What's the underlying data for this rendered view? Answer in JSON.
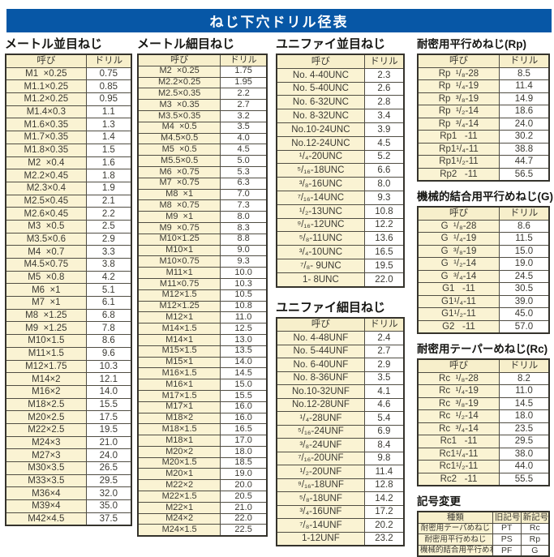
{
  "page_title": "ねじ下穴ドリル径表",
  "colors": {
    "banner_blue": "#0757a6",
    "cell_cream": "#faf3d3",
    "header_cream": "#f7efcb",
    "border_dark": "#35332c",
    "text": "#3b3a33"
  },
  "tables": {
    "metric_coarse": {
      "title": "メートル並目ねじ",
      "headers": [
        "呼び",
        "ドリル"
      ],
      "rows": [
        [
          "M1  ×0.25",
          "0.75"
        ],
        [
          "M1.1×0.25",
          "0.85"
        ],
        [
          "M1.2×0.25",
          "0.95"
        ],
        [
          "M1.4×0.3",
          "1.1"
        ],
        [
          "M1.6×0.35",
          "1.3"
        ],
        [
          "M1.7×0.35",
          "1.4"
        ],
        [
          "M1.8×0.35",
          "1.5"
        ],
        [
          "M2  ×0.4",
          "1.6"
        ],
        [
          "M2.2×0.45",
          "1.8"
        ],
        [
          "M2.3×0.4",
          "1.9"
        ],
        [
          "M2.5×0.45",
          "2.1"
        ],
        [
          "M2.6×0.45",
          "2.2"
        ],
        [
          "M3  ×0.5",
          "2.5"
        ],
        [
          "M3.5×0.6",
          "2.9"
        ],
        [
          "M4  ×0.7",
          "3.3"
        ],
        [
          "M4.5×0.75",
          "3.8"
        ],
        [
          "M5  ×0.8",
          "4.2"
        ],
        [
          "M6  ×1",
          "5.1"
        ],
        [
          "M7  ×1",
          "6.1"
        ],
        [
          "M8  ×1.25",
          "6.8"
        ],
        [
          "M9  ×1.25",
          "7.8"
        ],
        [
          "M10×1.5",
          "8.6"
        ],
        [
          "M11×1.5",
          "9.6"
        ],
        [
          "M12×1.75",
          "10.3"
        ],
        [
          "M14×2",
          "12.1"
        ],
        [
          "M16×2",
          "14.0"
        ],
        [
          "M18×2.5",
          "15.5"
        ],
        [
          "M20×2.5",
          "17.5"
        ],
        [
          "M22×2.5",
          "19.5"
        ],
        [
          "M24×3",
          "21.0"
        ],
        [
          "M27×3",
          "24.0"
        ],
        [
          "M30×3.5",
          "26.5"
        ],
        [
          "M33×3.5",
          "29.5"
        ],
        [
          "M36×4",
          "32.0"
        ],
        [
          "M39×4",
          "35.0"
        ],
        [
          "M42×4.5",
          "37.5"
        ]
      ]
    },
    "metric_fine": {
      "title": "メートル細目ねじ",
      "headers": [
        "呼び",
        "ドリル"
      ],
      "rows": [
        [
          "M2  ×0.25",
          "1.75"
        ],
        [
          "M2.2×0.25",
          "1.95"
        ],
        [
          "M2.5×0.35",
          "2.2"
        ],
        [
          "M3  ×0.35",
          "2.7"
        ],
        [
          "M3.5×0.35",
          "3.2"
        ],
        [
          "M4  ×0.5",
          "3.5"
        ],
        [
          "M4.5×0.5",
          "4.0"
        ],
        [
          "M5  ×0.5",
          "4.5"
        ],
        [
          "M5.5×0.5",
          "5.0"
        ],
        [
          "M6  ×0.75",
          "5.3"
        ],
        [
          "M7  ×0.75",
          "6.3"
        ],
        [
          "M8  ×1",
          "7.0"
        ],
        [
          "M8  ×0.75",
          "7.3"
        ],
        [
          "M9  ×1",
          "8.0"
        ],
        [
          "M9  ×0.75",
          "8.3"
        ],
        [
          "M10×1.25",
          "8.8"
        ],
        [
          "M10×1",
          "9.0"
        ],
        [
          "M10×0.75",
          "9.3"
        ],
        [
          "M11×1",
          "10.0"
        ],
        [
          "M11×0.75",
          "10.3"
        ],
        [
          "M12×1.5",
          "10.5"
        ],
        [
          "M12×1.25",
          "10.8"
        ],
        [
          "M12×1",
          "11.0"
        ],
        [
          "M14×1.5",
          "12.5"
        ],
        [
          "M14×1",
          "13.0"
        ],
        [
          "M15×1.5",
          "13.5"
        ],
        [
          "M15×1",
          "14.0"
        ],
        [
          "M16×1.5",
          "14.5"
        ],
        [
          "M16×1",
          "15.0"
        ],
        [
          "M17×1.5",
          "15.5"
        ],
        [
          "M17×1",
          "16.0"
        ],
        [
          "M18×2",
          "16.0"
        ],
        [
          "M18×1.5",
          "16.5"
        ],
        [
          "M18×1",
          "17.0"
        ],
        [
          "M20×2",
          "18.0"
        ],
        [
          "M20×1.5",
          "18.5"
        ],
        [
          "M20×1",
          "19.0"
        ],
        [
          "M22×2",
          "20.0"
        ],
        [
          "M22×1.5",
          "20.5"
        ],
        [
          "M22×1",
          "21.0"
        ],
        [
          "M24×2",
          "22.0"
        ],
        [
          "M24×1.5",
          "22.5"
        ]
      ]
    },
    "unified_coarse": {
      "title": "ユニファイ並目ねじ",
      "headers": [
        "呼び",
        "ドリル"
      ],
      "rows": [
        [
          "No. 4-40UNC",
          "2.3"
        ],
        [
          "No. 5-40UNC",
          "2.6"
        ],
        [
          "No. 6-32UNC",
          "2.8"
        ],
        [
          "No. 8-32UNC",
          "3.4"
        ],
        [
          "No.10-24UNC",
          "3.9"
        ],
        [
          "No.12-24UNC",
          "4.5"
        ],
        [
          "¹/₄-20UNC",
          "5.2"
        ],
        [
          "⁵/₁₆-18UNC",
          "6.6"
        ],
        [
          "³/₈-16UNC",
          "8.0"
        ],
        [
          "⁷/₁₆-14UNC",
          "9.3"
        ],
        [
          "¹/₂-13UNC",
          "10.8"
        ],
        [
          "⁹/₁₆-12UNC",
          "12.2"
        ],
        [
          "⁵/₈-11UNC",
          "13.6"
        ],
        [
          "³/₄-10UNC",
          "16.5"
        ],
        [
          "⁷/₈- 9UNC",
          "19.5"
        ],
        [
          "1- 8UNC",
          "22.0"
        ]
      ]
    },
    "unified_fine": {
      "title": "ユニファイ細目ねじ",
      "headers": [
        "呼び",
        "ドリル"
      ],
      "rows": [
        [
          "No. 4-48UNF",
          "2.4"
        ],
        [
          "No. 5-44UNF",
          "2.7"
        ],
        [
          "No. 6-40UNF",
          "2.9"
        ],
        [
          "No. 8-36UNF",
          "3.5"
        ],
        [
          "No.10-32UNF",
          "4.1"
        ],
        [
          "No.12-28UNF",
          "4.6"
        ],
        [
          "¹/₄-28UNF",
          "5.4"
        ],
        [
          "⁵/₁₆-24UNF",
          "6.9"
        ],
        [
          "³/₈-24UNF",
          "8.4"
        ],
        [
          "⁷/₁₆-20UNF",
          "9.8"
        ],
        [
          "¹/₂-20UNF",
          "11.4"
        ],
        [
          "⁹/₁₆-18UNF",
          "12.8"
        ],
        [
          "⁵/₈-18UNF",
          "14.2"
        ],
        [
          "³/₄-16UNF",
          "17.2"
        ],
        [
          "⁷/₈-14UNF",
          "20.2"
        ],
        [
          "1-12UNF",
          "23.2"
        ]
      ]
    },
    "rp": {
      "title": "耐密用平行めねじ(Rp)",
      "headers": [
        "呼び",
        "ドリル"
      ],
      "rows": [
        [
          "Rp  ¹/₈-28",
          "8.5"
        ],
        [
          "Rp  ¹/₄-19",
          "11.4"
        ],
        [
          "Rp  ³/₈-19",
          "14.9"
        ],
        [
          "Rp  ¹/₂-14",
          "18.6"
        ],
        [
          "Rp  ³/₄-14",
          "24.0"
        ],
        [
          "Rp1   -11",
          "30.2"
        ],
        [
          "Rp1¹/₄-11",
          "38.8"
        ],
        [
          "Rp1¹/₂-11",
          "44.7"
        ],
        [
          "Rp2   -11",
          "56.5"
        ]
      ]
    },
    "g": {
      "title": "機械的結合用平行めねじ(G)",
      "headers": [
        "呼び",
        "ドリル"
      ],
      "rows": [
        [
          "G  ¹/₈-28",
          "8.6"
        ],
        [
          "G  ¹/₄-19",
          "11.5"
        ],
        [
          "G  ³/₈-19",
          "15.0"
        ],
        [
          "G  ¹/₂-14",
          "19.0"
        ],
        [
          "G  ³/₄-14",
          "24.5"
        ],
        [
          "G1   -11",
          "30.5"
        ],
        [
          "G1¹/₄-11",
          "39.0"
        ],
        [
          "G1¹/₂-11",
          "45.0"
        ],
        [
          "G2   -11",
          "57.0"
        ]
      ]
    },
    "rc": {
      "title": "耐密用テーパーめねじ(Rc)",
      "headers": [
        "呼び",
        "ドリル"
      ],
      "rows": [
        [
          "Rc  ¹/₈-28",
          "8.2"
        ],
        [
          "Rc  ¹/₄-19",
          "11.0"
        ],
        [
          "Rc  ³/₈-19",
          "14.5"
        ],
        [
          "Rc  ¹/₂-14",
          "18.0"
        ],
        [
          "Rc  ³/₄-14",
          "23.5"
        ],
        [
          "Rc1   -11",
          "29.5"
        ],
        [
          "Rc1¹/₄-11",
          "38.0"
        ],
        [
          "Rc1¹/₂-11",
          "44.0"
        ],
        [
          "Rc2   -11",
          "55.5"
        ]
      ]
    },
    "symbol_change": {
      "title": "記号変更",
      "headers": [
        "種類",
        "旧記号",
        "新記号"
      ],
      "rows": [
        [
          "耐密用テーパめねじ",
          "PT",
          "Rc"
        ],
        [
          "耐密用平行めねじ",
          "PS",
          "Rp"
        ],
        [
          "機械的結合用平行めねじ",
          "PF",
          "G"
        ]
      ]
    }
  }
}
